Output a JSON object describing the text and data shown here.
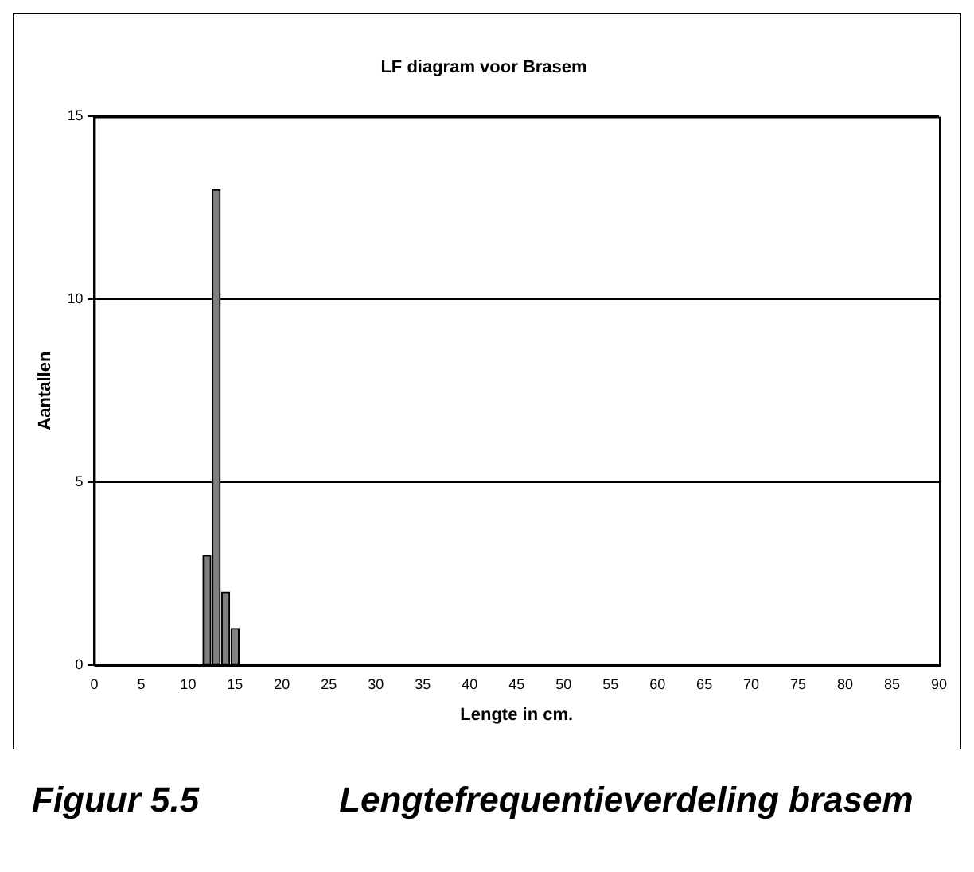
{
  "chart_data": {
    "type": "bar",
    "title": "LF diagram voor Brasem",
    "xlabel": "Lengte in cm.",
    "ylabel": "Aantallen",
    "x": [
      12,
      13,
      14,
      15
    ],
    "values": [
      3,
      13,
      2,
      1
    ],
    "color": "#808080",
    "xlim": [
      0,
      90
    ],
    "xticks": [
      0,
      5,
      10,
      15,
      20,
      25,
      30,
      35,
      40,
      45,
      50,
      55,
      60,
      65,
      70,
      75,
      80,
      85,
      90
    ],
    "ylim": [
      0,
      15
    ],
    "yticks": [
      0,
      5,
      10,
      15
    ],
    "grid": "y",
    "legend": false,
    "annotations": [
      "Figuur 5.5    Lengtefrequentieverdeling brasem"
    ]
  }
}
